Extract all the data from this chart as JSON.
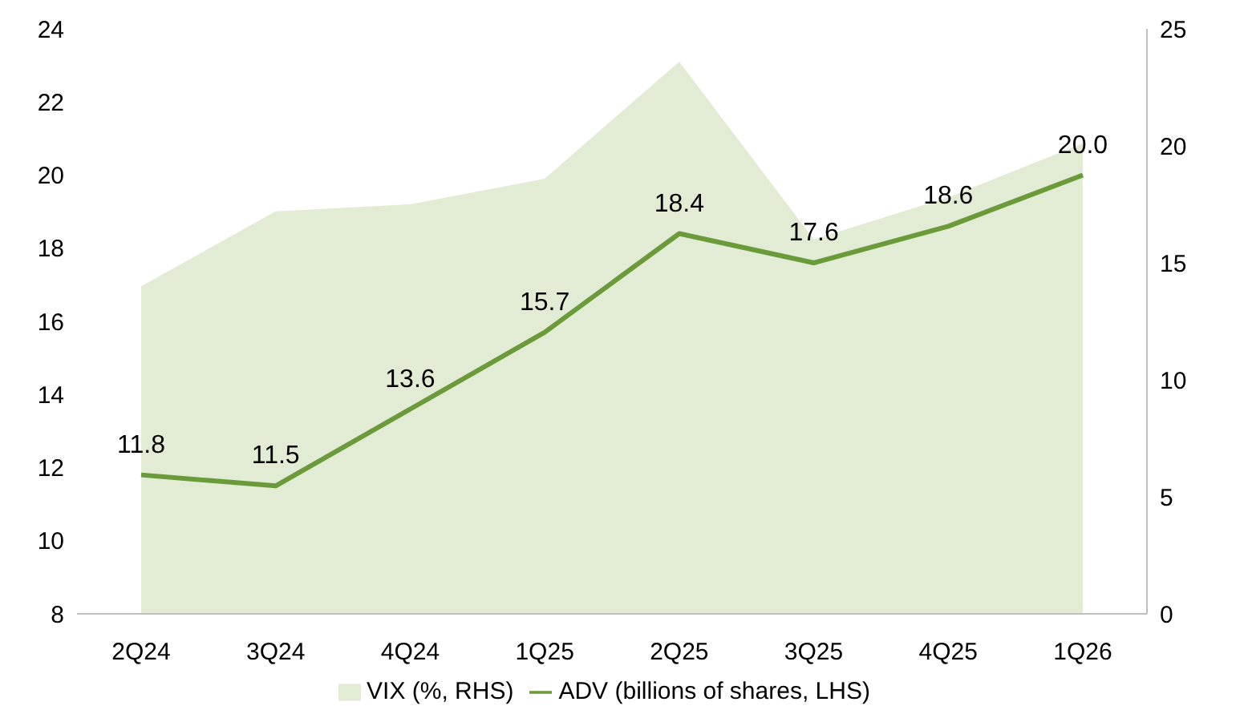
{
  "chart_data": {
    "type": "line",
    "categories": [
      "2Q24",
      "3Q24",
      "4Q24",
      "1Q25",
      "2Q25",
      "3Q25",
      "4Q25",
      "1Q26"
    ],
    "series": [
      {
        "name": "VIX (%, RHS)",
        "type": "area",
        "axis": "y2",
        "color": "#e2ebd4",
        "values": [
          14.0,
          17.2,
          17.5,
          18.6,
          23.6,
          16.0,
          17.8,
          20.1
        ]
      },
      {
        "name": "ADV (billions of shares, LHS)",
        "color": "#6b9a3a",
        "values": [
          11.8,
          11.5,
          13.6,
          15.7,
          18.4,
          17.6,
          18.6,
          20.0
        ],
        "value_labels": [
          "11.8",
          "11.5",
          "13.6",
          "15.7",
          "18.4",
          "17.6",
          "18.6",
          "20.0"
        ]
      }
    ],
    "ylim": [
      8,
      24
    ],
    "yticks": [
      8,
      10,
      12,
      14,
      16,
      18,
      20,
      22,
      24
    ],
    "y2lim": [
      0,
      25
    ],
    "y2ticks": [
      0,
      5,
      10,
      15,
      20,
      25
    ],
    "grid": false,
    "legend": "bottom",
    "marker": "none"
  }
}
